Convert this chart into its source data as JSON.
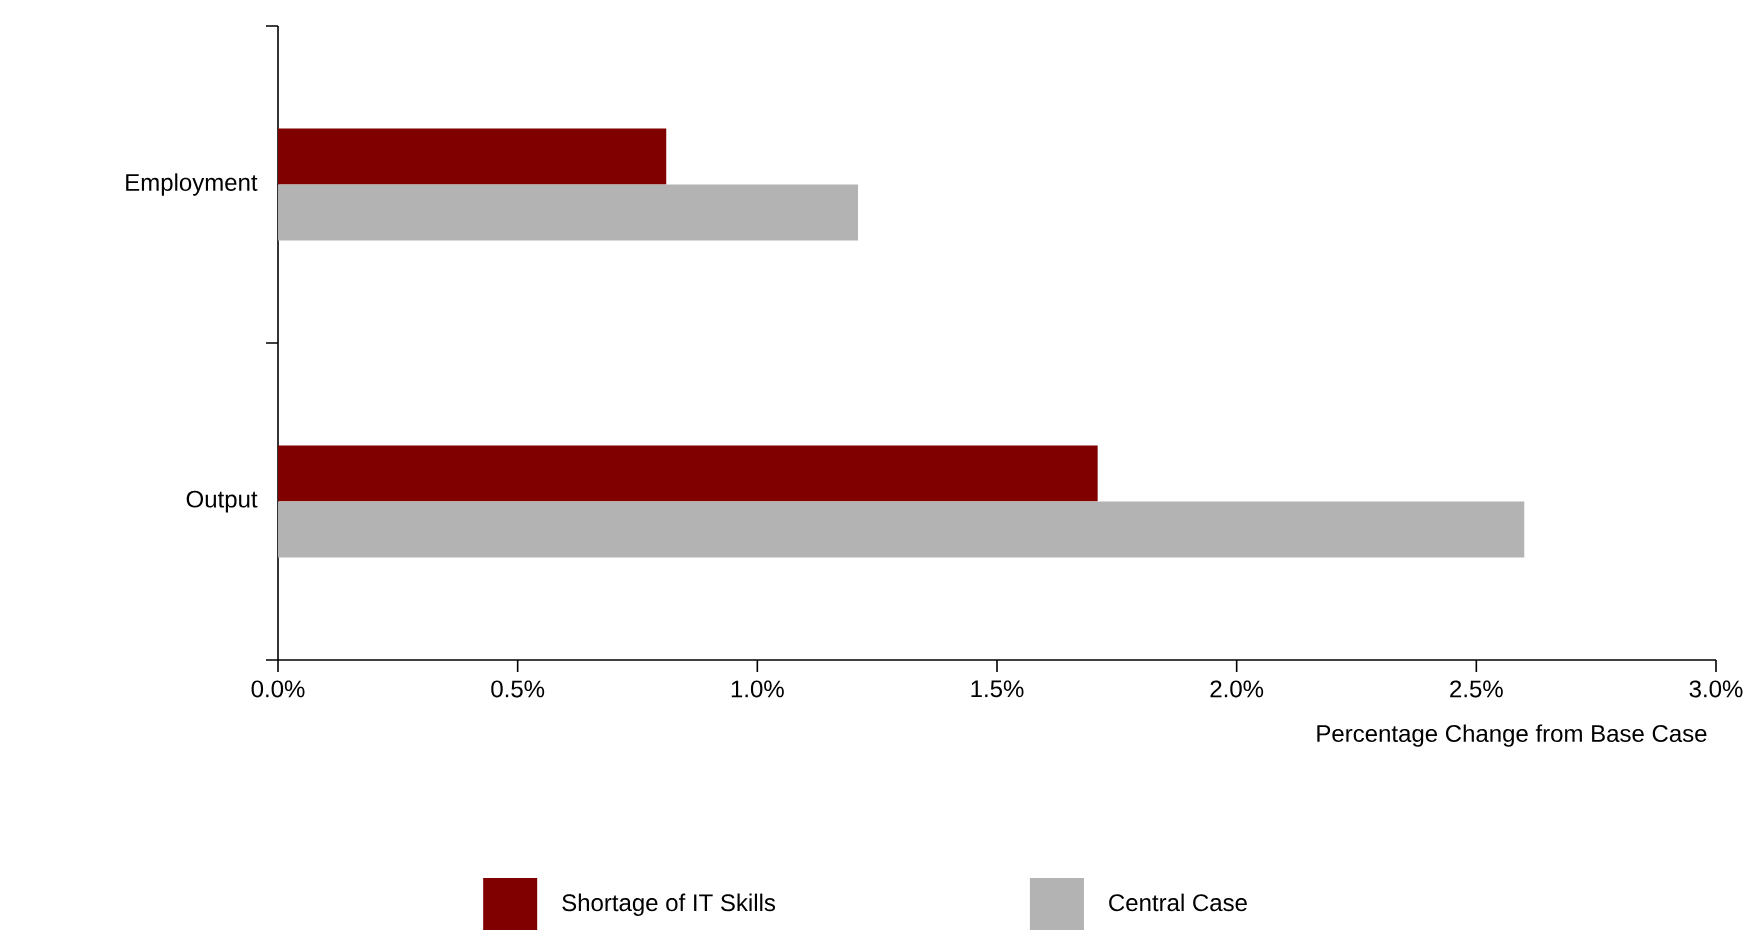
{
  "chart_data": {
    "type": "bar",
    "orientation": "horizontal",
    "xlabel": "Percentage Change from Base Case",
    "categories": [
      "Employment",
      "Output"
    ],
    "series": [
      {
        "name": "Shortage of IT Skills",
        "color": "#800000",
        "values": [
          0.81,
          1.71
        ]
      },
      {
        "name": "Central Case",
        "color": "#b3b3b3",
        "values": [
          1.21,
          2.6
        ]
      }
    ],
    "xlim": [
      0,
      3
    ],
    "xticks": [
      {
        "value": 0,
        "label": "0.0%"
      },
      {
        "value": 0.5,
        "label": "0.5%"
      },
      {
        "value": 1,
        "label": "1.0%"
      },
      {
        "value": 1.5,
        "label": "1.5%"
      },
      {
        "value": 2,
        "label": "2.0%"
      },
      {
        "value": 2.5,
        "label": "2.5%"
      },
      {
        "value": 3,
        "label": "3.0%"
      }
    ],
    "grid": false,
    "legend": "bottom"
  }
}
